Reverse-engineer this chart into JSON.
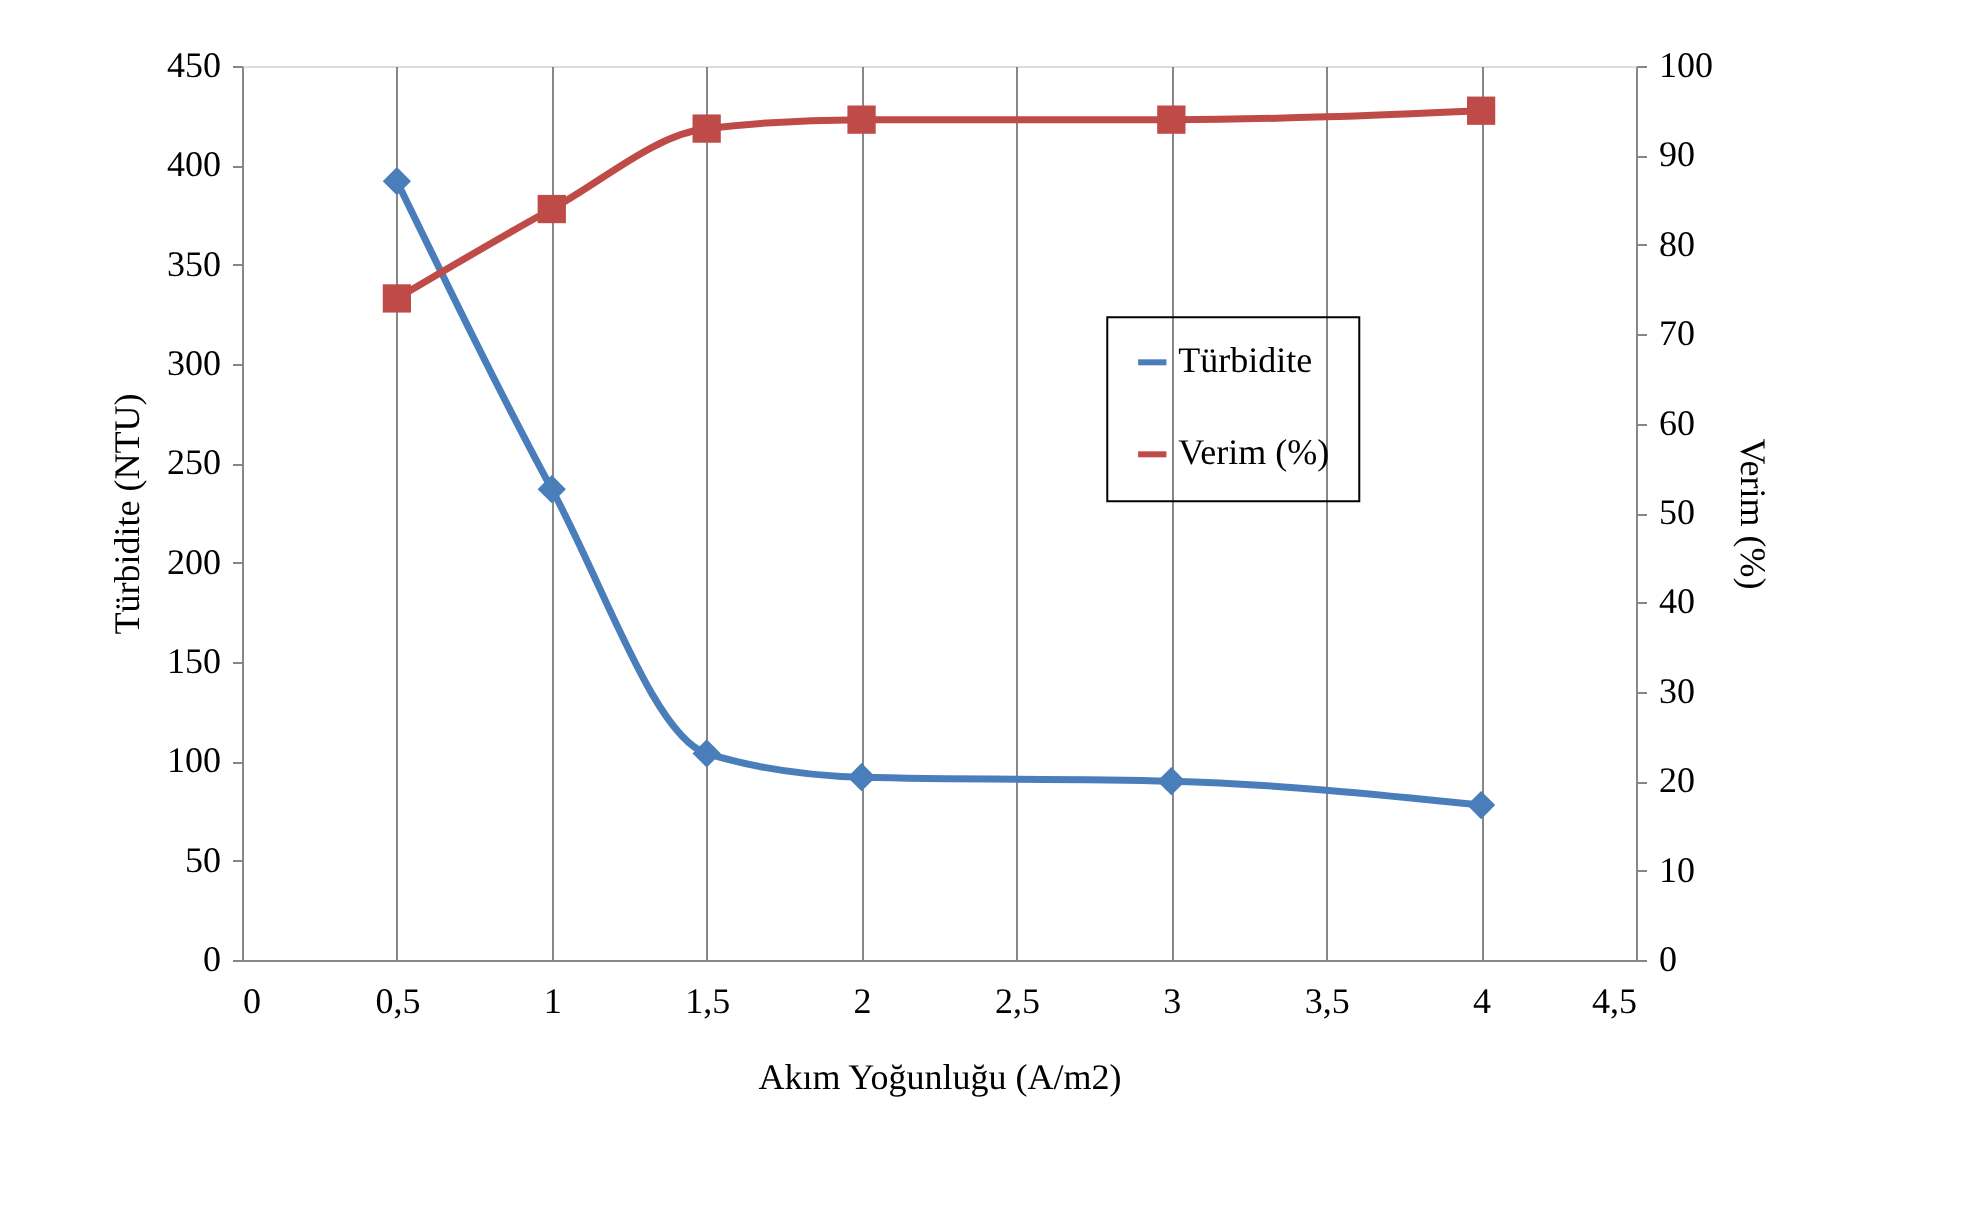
{
  "chart_data": {
    "type": "line",
    "xlabel": "Akım Yoğunluğu (A/m2)",
    "ylabel": "Türbidite (NTU)",
    "y2label": "Verim (%)",
    "x": [
      0.5,
      1,
      1.5,
      2,
      3,
      4
    ],
    "series": [
      {
        "name": "Türbidite",
        "color": "#4a7ebb",
        "marker": "diamond",
        "values": [
          392,
          237,
          104,
          92,
          90,
          78
        ]
      },
      {
        "name": "Verim (%)",
        "color": "#be4b48",
        "marker": "square",
        "axis": "y2",
        "values": [
          74,
          84,
          93,
          94,
          94,
          95
        ]
      }
    ],
    "xlim": [
      0,
      4.5
    ],
    "xticks": [
      0,
      {
        "value": 0.5,
        "label": "0,5"
      },
      1,
      {
        "value": 1.5,
        "label": "1,5"
      },
      2,
      {
        "value": 2.5,
        "label": "2,5"
      },
      3,
      {
        "value": 3.5,
        "label": "3,5"
      },
      4,
      {
        "value": 4.5,
        "label": "4,5"
      }
    ],
    "ylim": [
      0,
      450
    ],
    "yticks": [
      0,
      50,
      100,
      150,
      200,
      250,
      300,
      350,
      400,
      450
    ],
    "y2lim": [
      0,
      100
    ],
    "y2ticks": [
      0,
      10,
      20,
      30,
      40,
      50,
      60,
      70,
      80,
      90,
      100
    ],
    "grid": "x",
    "legend": "right",
    "line_style": "solid"
  }
}
